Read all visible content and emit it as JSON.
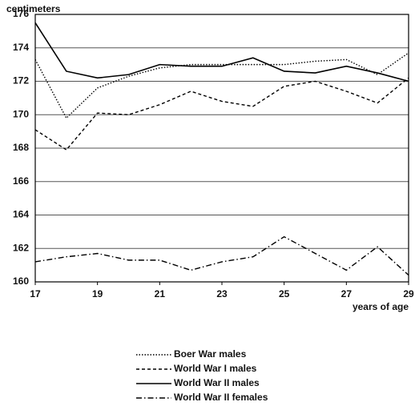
{
  "chart_data": {
    "type": "line",
    "y_label": "centimeters",
    "x_label": "years of age",
    "x": [
      17,
      18,
      19,
      20,
      21,
      22,
      23,
      24,
      25,
      26,
      27,
      28,
      29
    ],
    "xlim": [
      17,
      29
    ],
    "xticks": [
      17,
      19,
      21,
      23,
      25,
      27,
      29
    ],
    "ylim": [
      160,
      176
    ],
    "yticks": [
      160,
      162,
      164,
      166,
      168,
      170,
      172,
      174,
      176
    ],
    "grid": true,
    "legend": "bottom",
    "series": [
      {
        "name": "Boer War males",
        "color": "#000000",
        "style": "dotted",
        "values": [
          173.3,
          169.8,
          171.6,
          172.3,
          172.8,
          173.0,
          173.0,
          173.0,
          173.0,
          173.2,
          173.3,
          172.4,
          173.7
        ]
      },
      {
        "name": "World War I males",
        "color": "#000000",
        "style": "dashed",
        "values": [
          169.1,
          167.9,
          170.1,
          170.0,
          170.6,
          171.4,
          170.8,
          170.5,
          171.7,
          172.0,
          171.4,
          170.7,
          172.2
        ]
      },
      {
        "name": "World War II males",
        "color": "#000000",
        "style": "solid",
        "values": [
          175.5,
          172.6,
          172.2,
          172.4,
          173.0,
          172.9,
          172.9,
          173.4,
          172.6,
          172.5,
          172.9,
          172.5,
          172.0
        ]
      },
      {
        "name": "World War II females",
        "color": "#000000",
        "style": "dashdot",
        "values": [
          161.2,
          161.5,
          161.7,
          161.3,
          161.3,
          160.7,
          161.2,
          161.5,
          162.7,
          161.7,
          160.7,
          162.1,
          160.4
        ]
      }
    ]
  }
}
